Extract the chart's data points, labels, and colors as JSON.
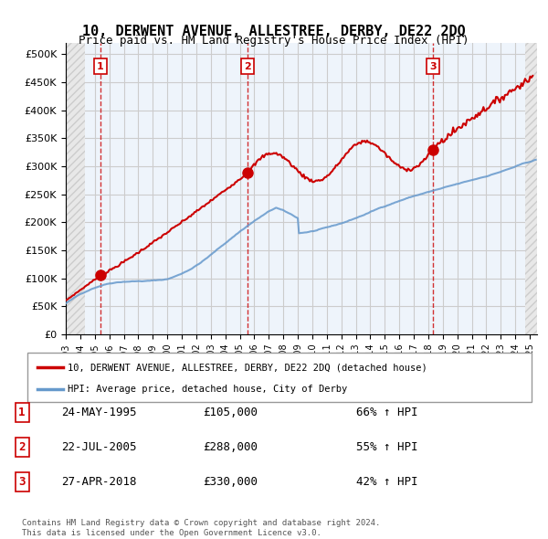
{
  "title": "10, DERWENT AVENUE, ALLESTREE, DERBY, DE22 2DQ",
  "subtitle": "Price paid vs. HM Land Registry's House Price Index (HPI)",
  "xlim_start": 1993.0,
  "xlim_end": 2025.5,
  "ylim_min": 0,
  "ylim_max": 520000,
  "yticks": [
    0,
    50000,
    100000,
    150000,
    200000,
    250000,
    300000,
    350000,
    400000,
    450000,
    500000
  ],
  "ytick_labels": [
    "£0",
    "£50K",
    "£100K",
    "£150K",
    "£200K",
    "£250K",
    "£300K",
    "£350K",
    "£400K",
    "£450K",
    "£500K"
  ],
  "sale_dates": [
    1995.39,
    2005.55,
    2018.32
  ],
  "sale_prices": [
    105000,
    288000,
    330000
  ],
  "sale_labels": [
    "1",
    "2",
    "3"
  ],
  "sale_info": [
    {
      "label": "1",
      "date": "24-MAY-1995",
      "price": "£105,000",
      "hpi": "66% ↑ HPI"
    },
    {
      "label": "2",
      "date": "22-JUL-2005",
      "price": "£288,000",
      "hpi": "55% ↑ HPI"
    },
    {
      "label": "3",
      "date": "27-APR-2018",
      "price": "£330,000",
      "hpi": "42% ↑ HPI"
    }
  ],
  "legend_line1": "10, DERWENT AVENUE, ALLESTREE, DERBY, DE22 2DQ (detached house)",
  "legend_line2": "HPI: Average price, detached house, City of Derby",
  "footer_line1": "Contains HM Land Registry data © Crown copyright and database right 2024.",
  "footer_line2": "This data is licensed under the Open Government Licence v3.0.",
  "line_color_red": "#cc0000",
  "line_color_blue": "#6699cc",
  "bg_hatch_color": "#dddddd",
  "grid_color": "#cccccc",
  "vline_color": "#cc0000",
  "plot_bg_color": "#eef4fb",
  "hatch_bg_color": "#f0f0f0"
}
